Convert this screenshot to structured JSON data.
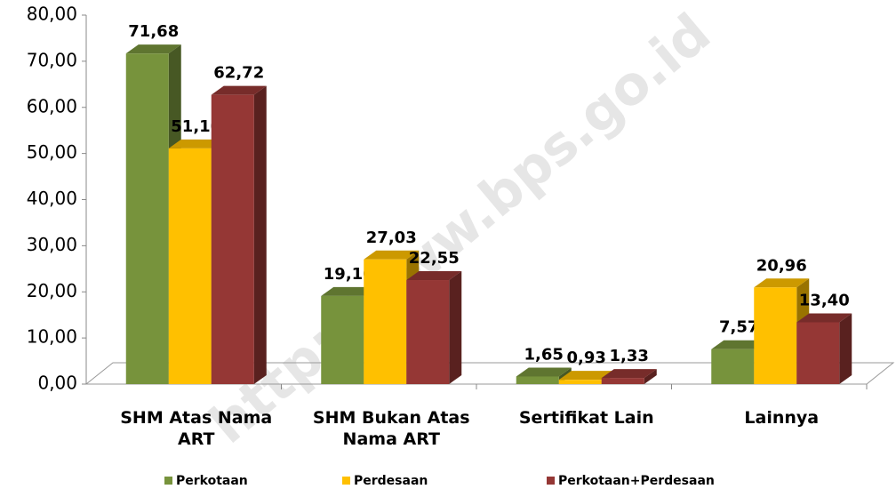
{
  "chart_data": {
    "type": "bar3d",
    "watermark": "http://www.bps.go.id",
    "categories": [
      "SHM Atas Nama ART",
      "SHM Bukan Atas Nama ART",
      "Sertifikat Lain",
      "Lainnya"
    ],
    "series": [
      {
        "name": "Perkotaan",
        "color": "#77933c",
        "values": [
          71.68,
          19.1,
          1.65,
          7.57
        ],
        "value_labels": [
          "71,68",
          "19,10",
          "1,65",
          "7,57"
        ]
      },
      {
        "name": "Perdesaan",
        "color": "#ffc000",
        "values": [
          51.1,
          27.03,
          0.93,
          20.96
        ],
        "value_labels": [
          "51,10",
          "27,03",
          "0,93",
          "20,96"
        ]
      },
      {
        "name": "Perkotaan+Perdesaan",
        "color": "#953735",
        "values": [
          62.72,
          22.55,
          1.33,
          13.4
        ],
        "value_labels": [
          "62,72",
          "22,55",
          "1,33",
          "13,40"
        ]
      }
    ],
    "ylim": [
      0,
      80
    ],
    "yticks": [
      {
        "value": 0,
        "label": "0,00"
      },
      {
        "value": 10,
        "label": "10,00"
      },
      {
        "value": 20,
        "label": "20,00"
      },
      {
        "value": 30,
        "label": "30,00"
      },
      {
        "value": 40,
        "label": "40,00"
      },
      {
        "value": 50,
        "label": "50,00"
      },
      {
        "value": 60,
        "label": "60,00"
      },
      {
        "value": 70,
        "label": "70,00"
      },
      {
        "value": 80,
        "label": "80,00"
      }
    ],
    "legend": "bottom"
  }
}
